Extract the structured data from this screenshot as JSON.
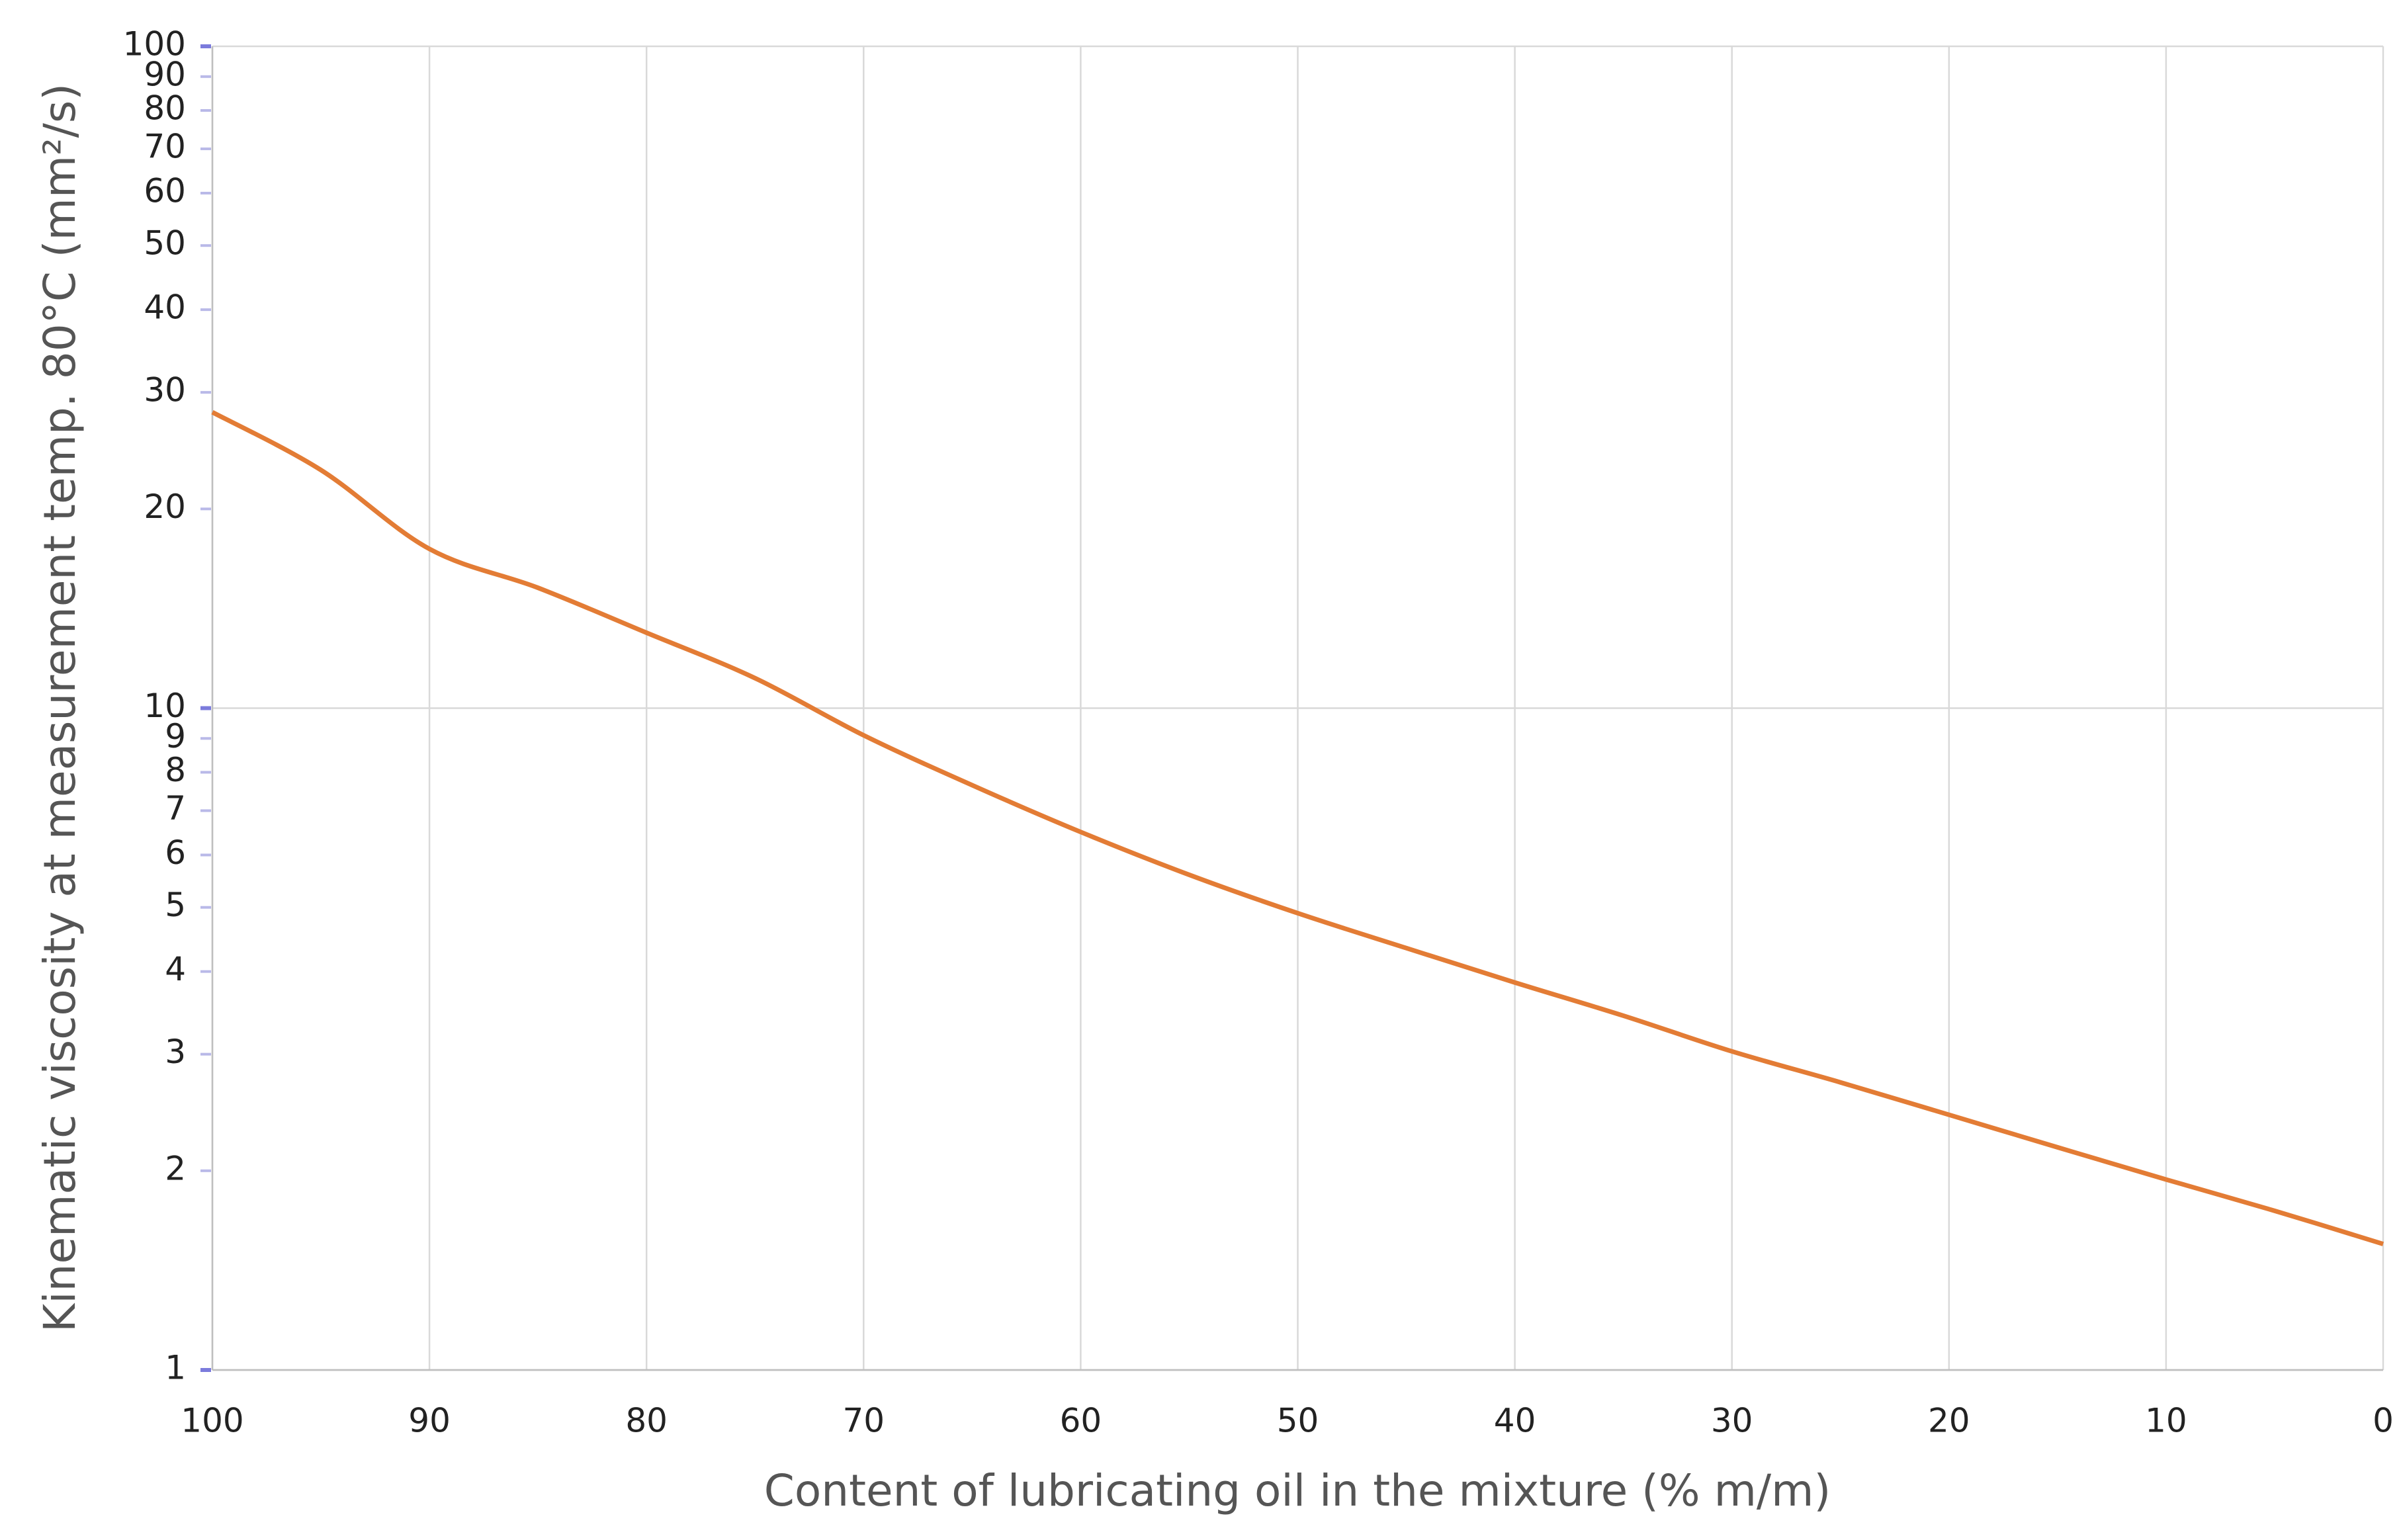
{
  "chart_data": {
    "type": "line",
    "xlabel": "Content of lubricating oil in the mixture (% m/m)",
    "ylabel": "Kinematic viscosity at measurement temp. 80°C (mm²/s)",
    "x": [
      100,
      95,
      90,
      85,
      80,
      75,
      70,
      65,
      60,
      55,
      50,
      45,
      40,
      35,
      30,
      25,
      20,
      15,
      10,
      5,
      0
    ],
    "series": [
      {
        "color": "#e37c35",
        "values": [
          28.0,
          22.9,
          17.4,
          15.2,
          13.0,
          11.1,
          9.1,
          7.65,
          6.5,
          5.6,
          4.9,
          4.34,
          3.85,
          3.43,
          3.03,
          2.72,
          2.43,
          2.17,
          1.94,
          1.74,
          1.55
        ]
      }
    ],
    "xlim": [
      100,
      0
    ],
    "xticks": [
      100,
      90,
      80,
      70,
      60,
      50,
      40,
      30,
      20,
      10,
      0
    ],
    "ylim": [
      1,
      100
    ],
    "yticks": [
      1,
      2,
      3,
      4,
      5,
      6,
      7,
      8,
      9,
      10,
      20,
      30,
      40,
      50,
      60,
      70,
      80,
      90,
      100
    ],
    "yscale": "log",
    "grid": true
  }
}
